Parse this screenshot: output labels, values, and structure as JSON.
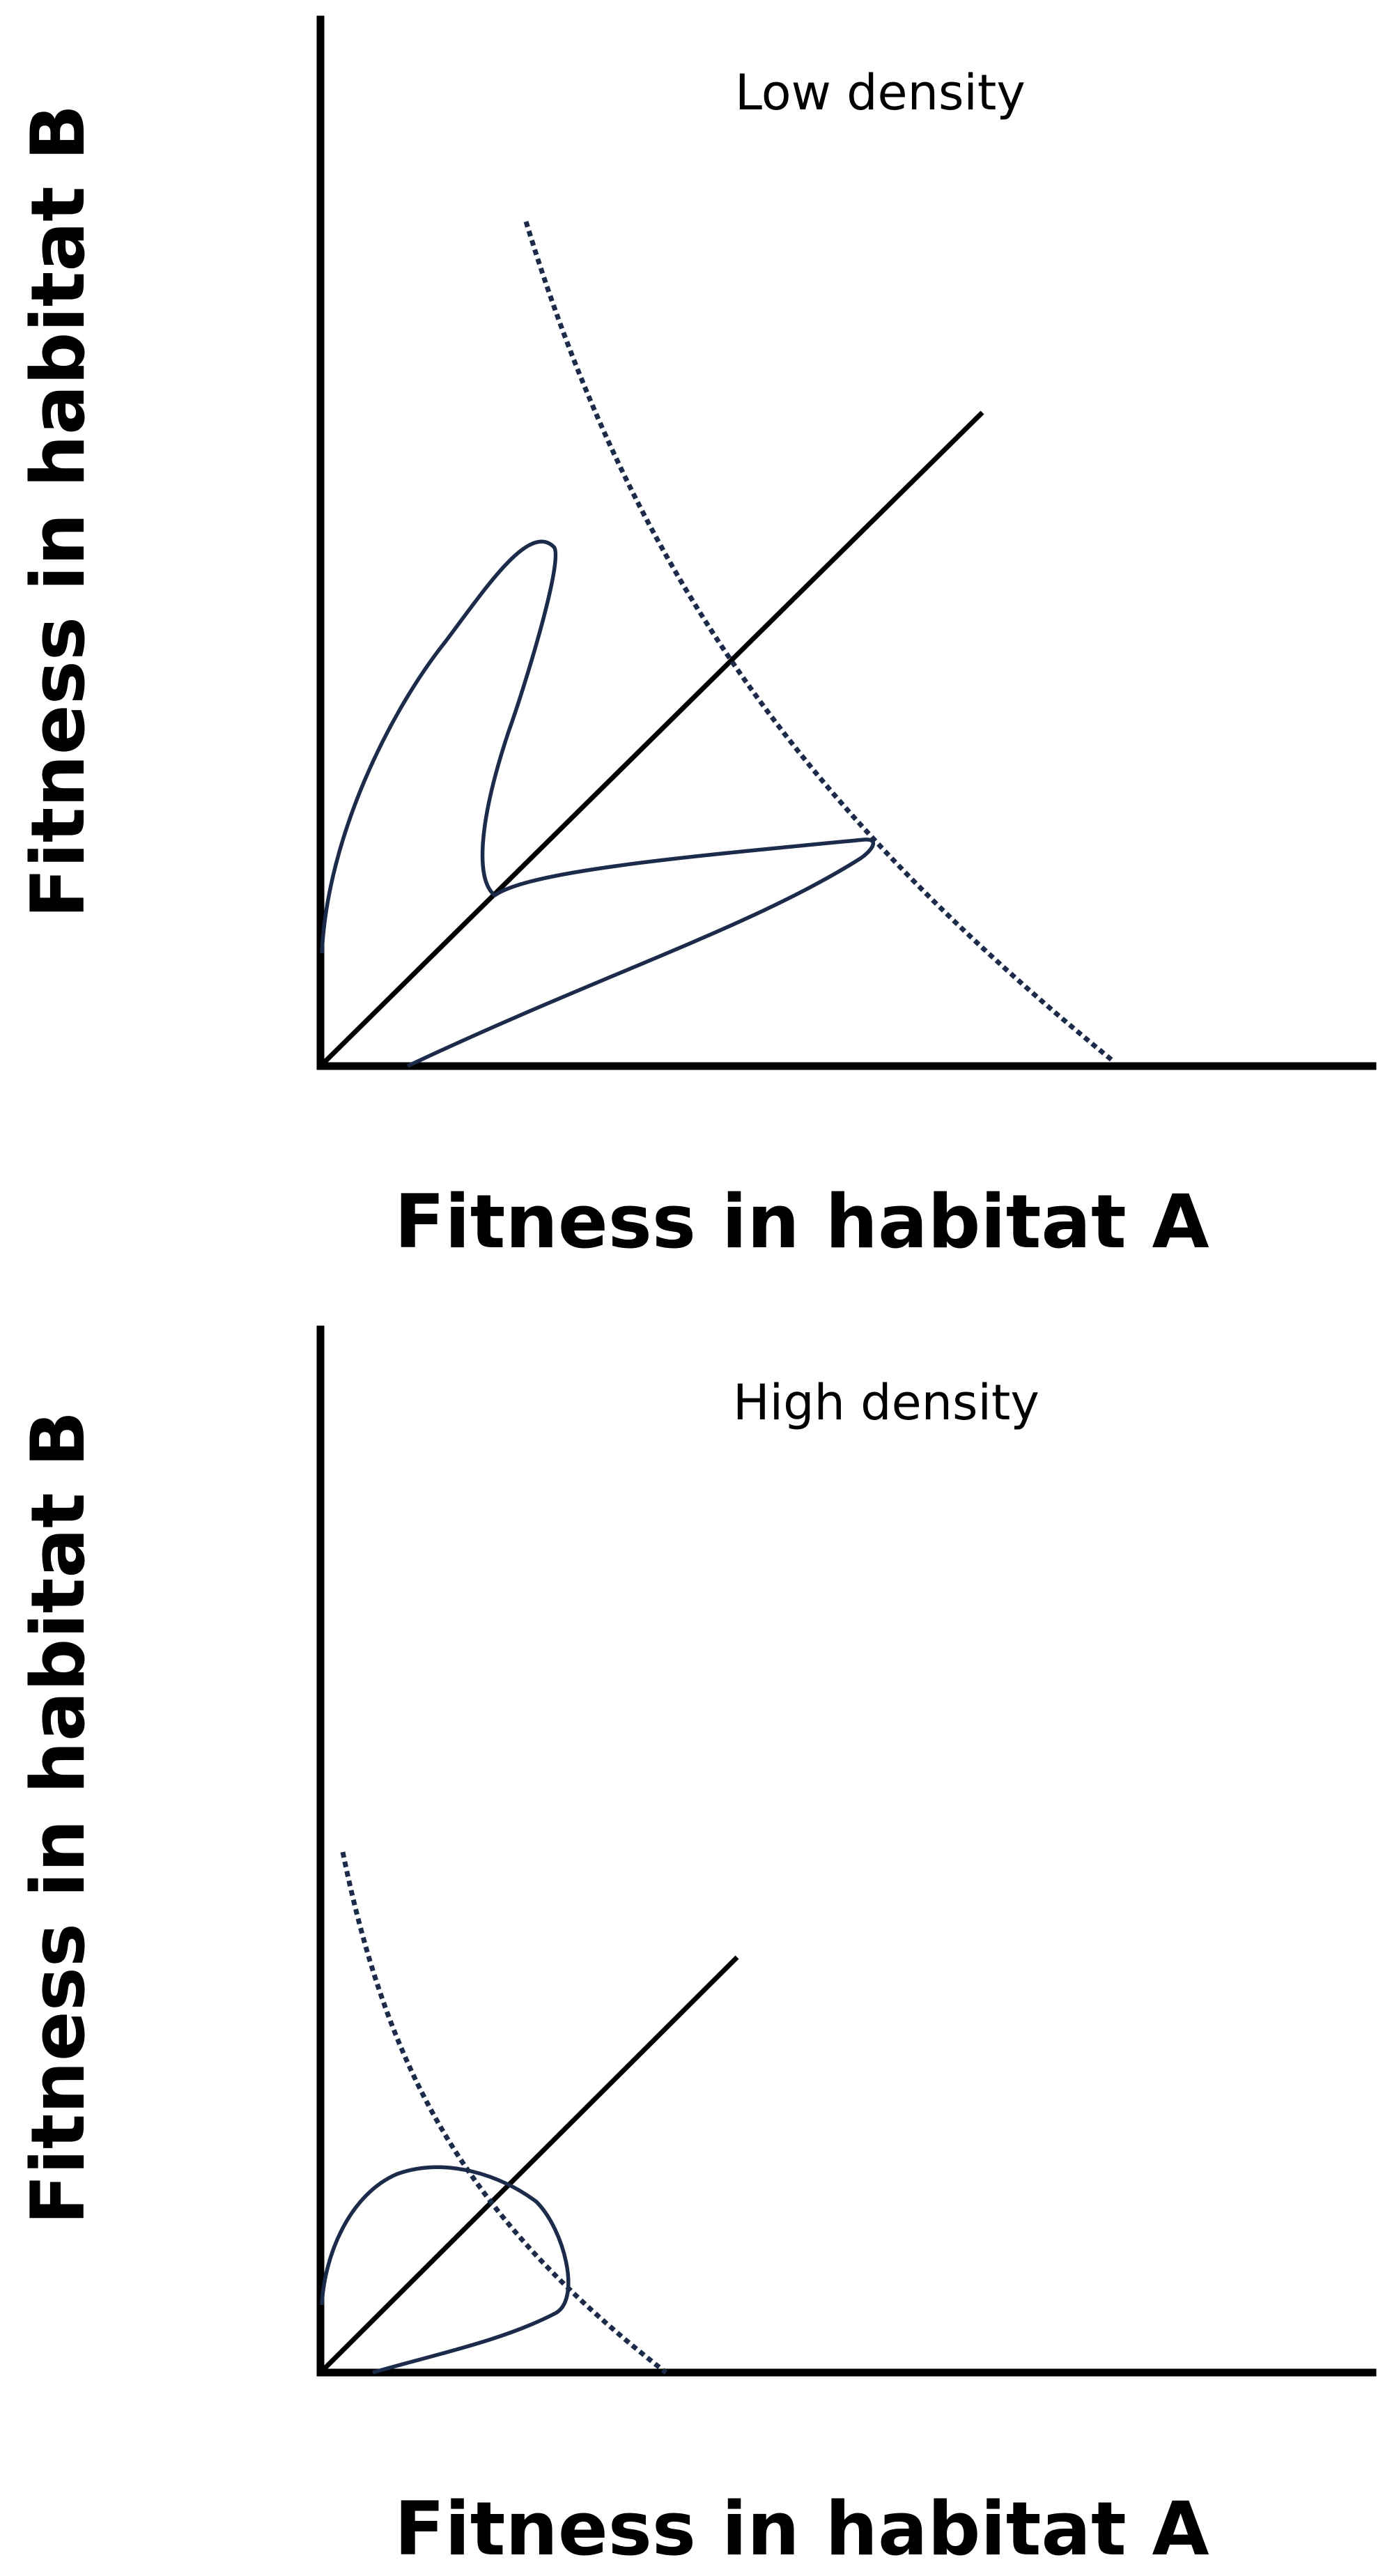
{
  "panels": [
    {
      "density_label": "Low density",
      "x_label": "Fitness in habitat A",
      "y_label": "Fitness in habitat B"
    },
    {
      "density_label": "High density",
      "x_label": "Fitness in habitat A",
      "y_label": "Fitness in habitat B"
    }
  ],
  "colors": {
    "axis": "#000000",
    "curve": "#1c2b4a"
  }
}
